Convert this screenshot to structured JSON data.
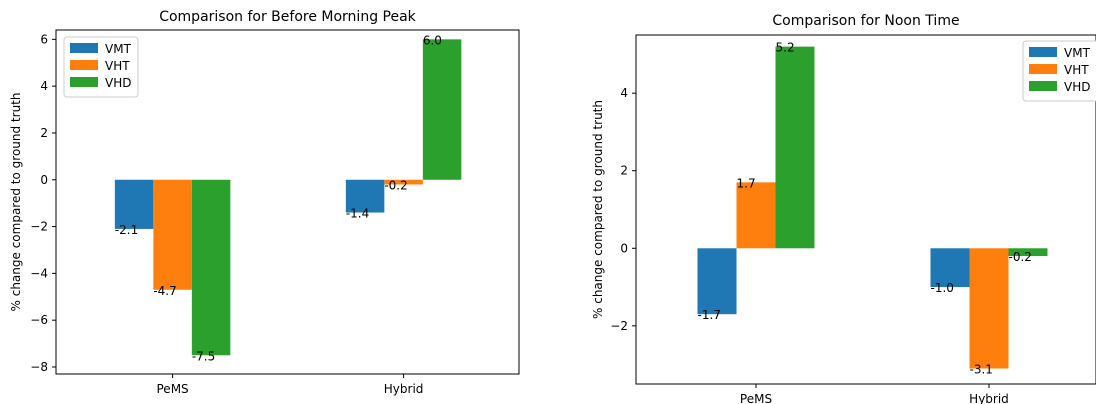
{
  "chart_data": [
    {
      "type": "bar",
      "title": "Comparison for Before Morning Peak",
      "xlabel": "",
      "ylabel": "% change compared to ground truth",
      "categories": [
        "PeMS",
        "Hybrid"
      ],
      "series": [
        {
          "name": "VMT",
          "color": "#1f77b4",
          "values": [
            -2.1,
            -1.4
          ],
          "labels": [
            "-2.1",
            "-1.4"
          ]
        },
        {
          "name": "VHT",
          "color": "#ff7f0e",
          "values": [
            -4.7,
            -0.2
          ],
          "labels": [
            "-4.7",
            "-0.2"
          ]
        },
        {
          "name": "VHD",
          "color": "#2ca02c",
          "values": [
            -7.5,
            6.0
          ],
          "labels": [
            "-7.5",
            "6.0"
          ]
        }
      ],
      "ylim": [
        -8.3,
        6.4
      ],
      "yticks": [
        -8,
        -6,
        -4,
        -2,
        0,
        2,
        4,
        6
      ],
      "ytick_labels": [
        "−8",
        "−6",
        "−4",
        "−2",
        "0",
        "2",
        "4",
        "6"
      ],
      "legend_position": "top-left",
      "grid": false
    },
    {
      "type": "bar",
      "title": "Comparison for Noon Time",
      "xlabel": "",
      "ylabel": "% change compared to ground truth",
      "categories": [
        "PeMS",
        "Hybrid"
      ],
      "series": [
        {
          "name": "VMT",
          "color": "#1f77b4",
          "values": [
            -1.7,
            -1.0
          ],
          "labels": [
            "-1.7",
            "-1.0"
          ]
        },
        {
          "name": "VHT",
          "color": "#ff7f0e",
          "values": [
            1.7,
            -3.1
          ],
          "labels": [
            "1.7",
            "-3.1"
          ]
        },
        {
          "name": "VHD",
          "color": "#2ca02c",
          "values": [
            5.2,
            -0.2
          ],
          "labels": [
            "5.2",
            "-0.2"
          ]
        }
      ],
      "ylim": [
        -3.5,
        5.5
      ],
      "yticks": [
        -2,
        0,
        2,
        4
      ],
      "ytick_labels": [
        "−2",
        "0",
        "2",
        "4"
      ],
      "legend_position": "top-right",
      "grid": false
    }
  ]
}
